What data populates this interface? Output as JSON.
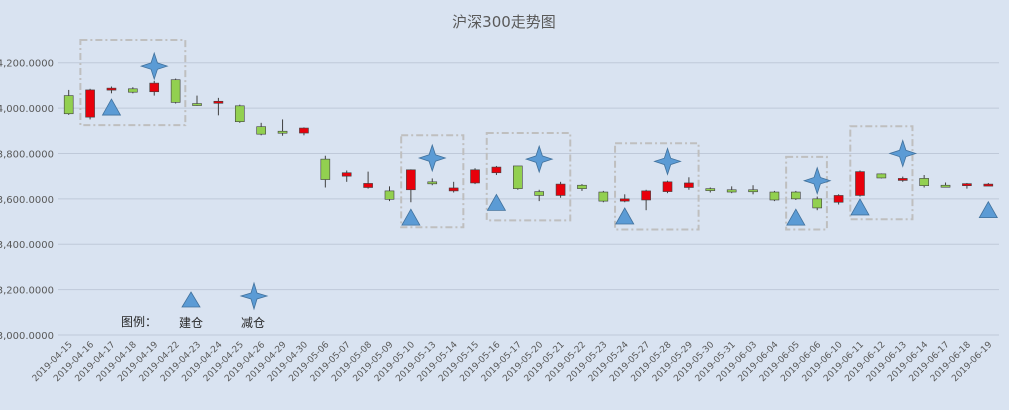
{
  "chart_data": {
    "type": "candlestick",
    "title": "沪深300走势图",
    "xlabel": "",
    "ylabel": "",
    "ylim": [
      3000,
      4300
    ],
    "yticks": [
      3000,
      3200,
      3400,
      3600,
      3800,
      4000,
      4200
    ],
    "ytick_labels": [
      "3,000.0000",
      "3,200.0000",
      "3,400.0000",
      "3,600.0000",
      "3,800.0000",
      "4,000.0000",
      "4,200.0000"
    ],
    "grid": true,
    "colors": {
      "up": "#e8000b",
      "down": "#92d050",
      "marker": "#5b9bd5",
      "box": "#bfbfbf",
      "grid": "#bfc9d9",
      "text": "#595959"
    },
    "categories": [
      "2019-04-15",
      "2019-04-16",
      "2019-04-17",
      "2019-04-18",
      "2019-04-19",
      "2019-04-22",
      "2019-04-23",
      "2019-04-24",
      "2019-04-25",
      "2019-04-26",
      "2019-04-29",
      "2019-04-30",
      "2019-05-06",
      "2019-05-07",
      "2019-05-08",
      "2019-05-09",
      "2019-05-10",
      "2019-05-13",
      "2019-05-14",
      "2019-05-15",
      "2019-05-16",
      "2019-05-17",
      "2019-05-20",
      "2019-05-21",
      "2019-05-22",
      "2019-05-23",
      "2019-05-24",
      "2019-05-27",
      "2019-05-28",
      "2019-05-29",
      "2019-05-30",
      "2019-05-31",
      "2019-06-03",
      "2019-06-04",
      "2019-06-05",
      "2019-06-06",
      "2019-06-10",
      "2019-06-11",
      "2019-06-12",
      "2019-06-13",
      "2019-06-14",
      "2019-06-17",
      "2019-06-18",
      "2019-06-19"
    ],
    "candles": [
      {
        "o": 4055,
        "h": 4080,
        "l": 3970,
        "c": 3975
      },
      {
        "o": 3960,
        "h": 4085,
        "l": 3950,
        "c": 4080
      },
      {
        "o": 4080,
        "h": 4095,
        "l": 4065,
        "c": 4088
      },
      {
        "o": 4085,
        "h": 4092,
        "l": 4065,
        "c": 4070
      },
      {
        "o": 4072,
        "h": 4120,
        "l": 4055,
        "c": 4110
      },
      {
        "o": 4125,
        "h": 4130,
        "l": 4020,
        "c": 4025
      },
      {
        "o": 4020,
        "h": 4055,
        "l": 4010,
        "c": 4018
      },
      {
        "o": 4030,
        "h": 4045,
        "l": 3968,
        "c": 4030
      },
      {
        "o": 4010,
        "h": 4015,
        "l": 3935,
        "c": 3940
      },
      {
        "o": 3918,
        "h": 3935,
        "l": 3880,
        "c": 3885
      },
      {
        "o": 3898,
        "h": 3950,
        "l": 3878,
        "c": 3895
      },
      {
        "o": 3890,
        "h": 3915,
        "l": 3880,
        "c": 3912
      },
      {
        "o": 3775,
        "h": 3790,
        "l": 3650,
        "c": 3685
      },
      {
        "o": 3700,
        "h": 3725,
        "l": 3675,
        "c": 3715
      },
      {
        "o": 3650,
        "h": 3720,
        "l": 3645,
        "c": 3668
      },
      {
        "o": 3635,
        "h": 3655,
        "l": 3590,
        "c": 3598
      },
      {
        "o": 3640,
        "h": 3730,
        "l": 3585,
        "c": 3728
      },
      {
        "o": 3675,
        "h": 3690,
        "l": 3660,
        "c": 3668
      },
      {
        "o": 3635,
        "h": 3675,
        "l": 3628,
        "c": 3648
      },
      {
        "o": 3670,
        "h": 3735,
        "l": 3665,
        "c": 3728
      },
      {
        "o": 3715,
        "h": 3745,
        "l": 3705,
        "c": 3740
      },
      {
        "o": 3745,
        "h": 3745,
        "l": 3640,
        "c": 3645
      },
      {
        "o": 3632,
        "h": 3640,
        "l": 3590,
        "c": 3615
      },
      {
        "o": 3615,
        "h": 3675,
        "l": 3605,
        "c": 3665
      },
      {
        "o": 3660,
        "h": 3665,
        "l": 3635,
        "c": 3645
      },
      {
        "o": 3630,
        "h": 3635,
        "l": 3585,
        "c": 3590
      },
      {
        "o": 3590,
        "h": 3620,
        "l": 3585,
        "c": 3600
      },
      {
        "o": 3595,
        "h": 3640,
        "l": 3550,
        "c": 3635
      },
      {
        "o": 3632,
        "h": 3680,
        "l": 3625,
        "c": 3675
      },
      {
        "o": 3650,
        "h": 3695,
        "l": 3640,
        "c": 3670
      },
      {
        "o": 3645,
        "h": 3650,
        "l": 3628,
        "c": 3638
      },
      {
        "o": 3640,
        "h": 3655,
        "l": 3625,
        "c": 3630
      },
      {
        "o": 3640,
        "h": 3660,
        "l": 3620,
        "c": 3632
      },
      {
        "o": 3630,
        "h": 3635,
        "l": 3590,
        "c": 3595
      },
      {
        "o": 3630,
        "h": 3635,
        "l": 3595,
        "c": 3600
      },
      {
        "o": 3600,
        "h": 3610,
        "l": 3550,
        "c": 3560
      },
      {
        "o": 3585,
        "h": 3620,
        "l": 3575,
        "c": 3615
      },
      {
        "o": 3615,
        "h": 3725,
        "l": 3610,
        "c": 3720
      },
      {
        "o": 3710,
        "h": 3712,
        "l": 3690,
        "c": 3692
      },
      {
        "o": 3685,
        "h": 3698,
        "l": 3675,
        "c": 3690
      },
      {
        "o": 3690,
        "h": 3705,
        "l": 3650,
        "c": 3658
      },
      {
        "o": 3660,
        "h": 3672,
        "l": 3650,
        "c": 3655
      },
      {
        "o": 3658,
        "h": 3670,
        "l": 3645,
        "c": 3667
      },
      {
        "o": 3665,
        "h": 3670,
        "l": 3660,
        "c": 3665
      }
    ],
    "build_markers": [
      {
        "x": "2019-04-17",
        "y": 4000
      },
      {
        "x": "2019-05-10",
        "y": 3515
      },
      {
        "x": "2019-05-16",
        "y": 3580
      },
      {
        "x": "2019-05-24",
        "y": 3520
      },
      {
        "x": "2019-06-05",
        "y": 3515
      },
      {
        "x": "2019-06-11",
        "y": 3560
      },
      {
        "x": "2019-06-19",
        "y": 3548
      }
    ],
    "reduce_markers": [
      {
        "x": "2019-04-19",
        "y": 4185
      },
      {
        "x": "2019-05-13",
        "y": 3780
      },
      {
        "x": "2019-05-20",
        "y": 3775
      },
      {
        "x": "2019-05-28",
        "y": 3765
      },
      {
        "x": "2019-06-06",
        "y": 3680
      },
      {
        "x": "2019-06-13",
        "y": 3800
      }
    ],
    "highlight_boxes": [
      {
        "x_from": "2019-04-16",
        "x_to": "2019-04-22",
        "y_from": 3925,
        "y_to": 4300
      },
      {
        "x_from": "2019-05-10",
        "x_to": "2019-05-14",
        "y_from": 3475,
        "y_to": 3880
      },
      {
        "x_from": "2019-05-16",
        "x_to": "2019-05-21",
        "y_from": 3505,
        "y_to": 3890
      },
      {
        "x_from": "2019-05-24",
        "x_to": "2019-05-29",
        "y_from": 3465,
        "y_to": 3845
      },
      {
        "x_from": "2019-06-05",
        "x_to": "2019-06-06",
        "y_from": 3465,
        "y_to": 3785
      },
      {
        "x_from": "2019-06-11",
        "x_to": "2019-06-13",
        "y_from": 3510,
        "y_to": 3920
      }
    ],
    "legend": {
      "label": "图例：",
      "placement": "bottom-left",
      "items": [
        {
          "name": "建仓",
          "marker": "triangle"
        },
        {
          "name": "减仓",
          "marker": "star"
        }
      ]
    }
  }
}
